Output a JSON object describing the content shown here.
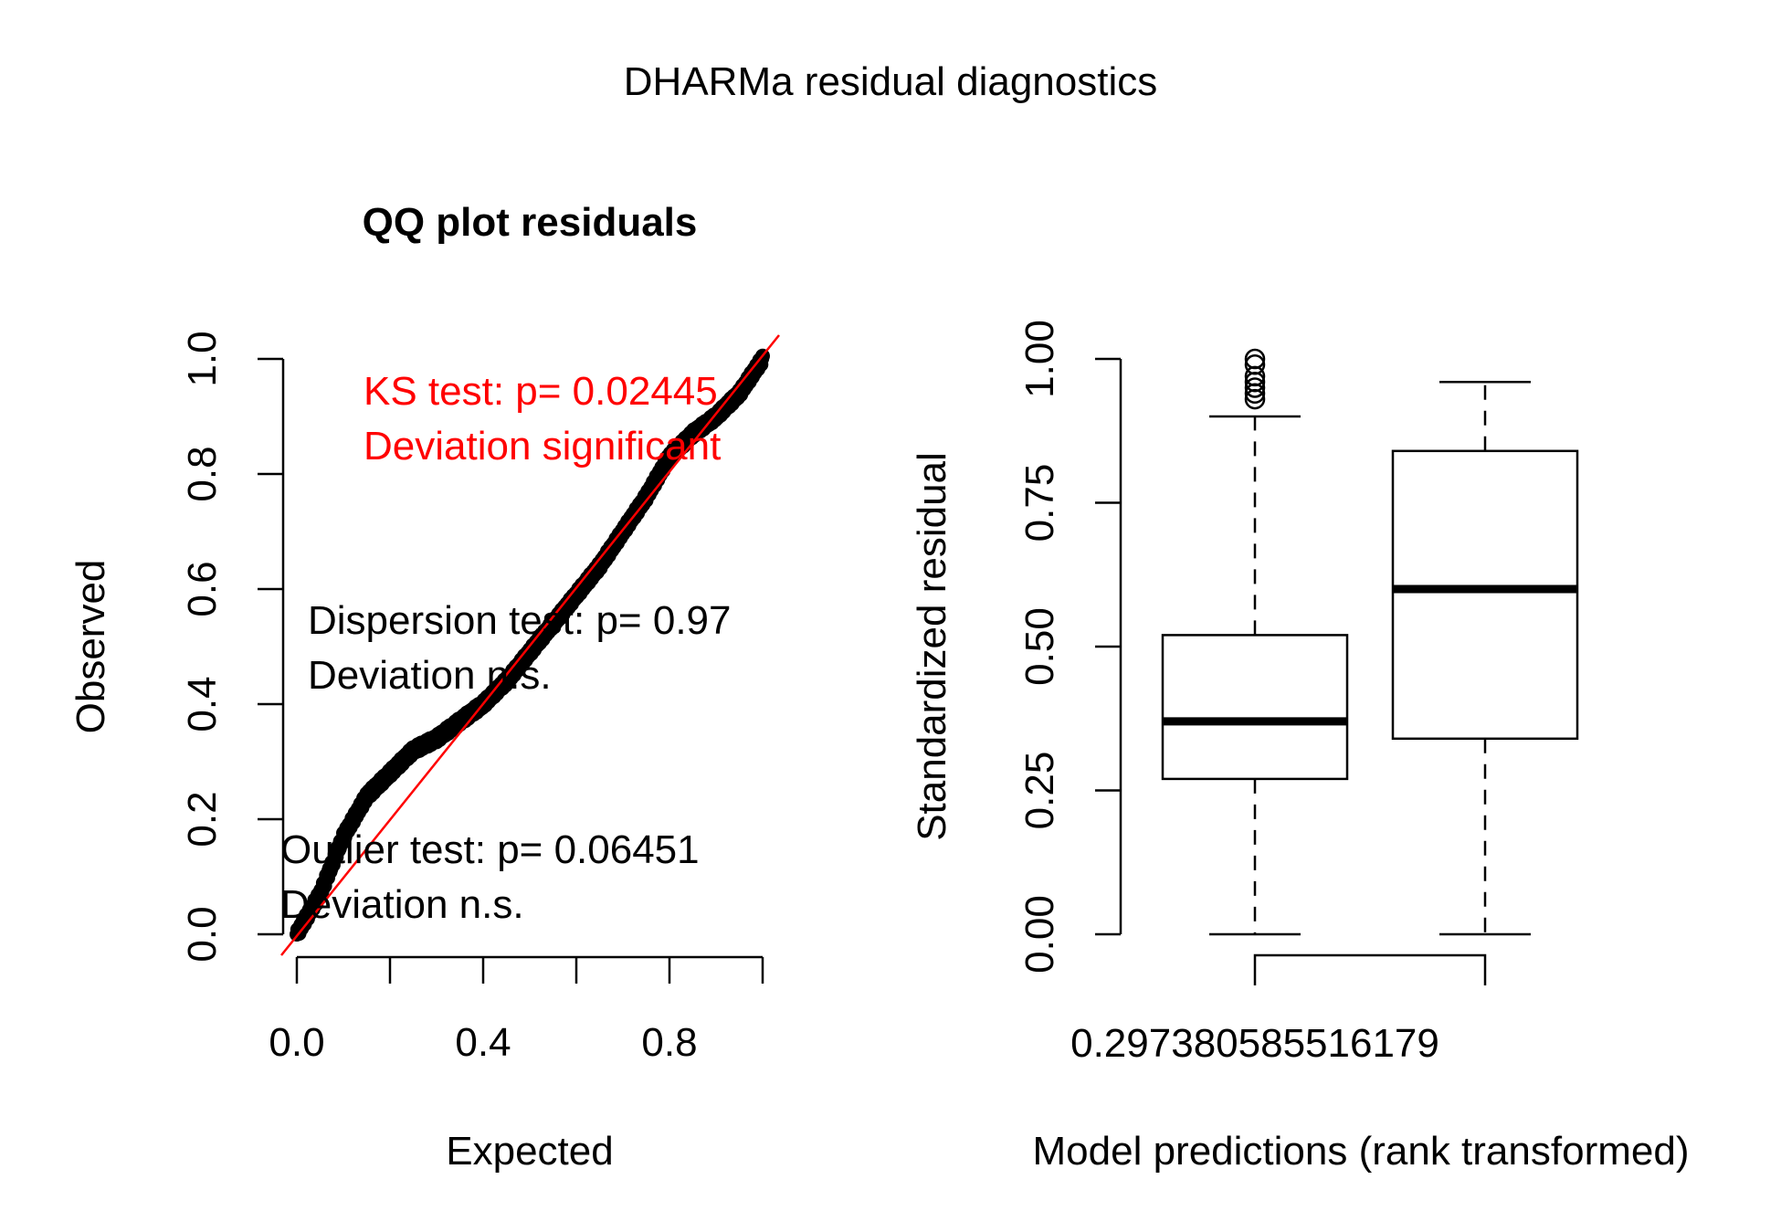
{
  "title": "DHARMa residual diagnostics",
  "chart_data": [
    {
      "type": "scatter",
      "title": "QQ plot residuals",
      "xlabel": "Expected",
      "ylabel": "Observed",
      "xlim": [
        0,
        1
      ],
      "ylim": [
        0,
        1
      ],
      "x_ticks": [
        "0.0",
        "0.4",
        "0.8"
      ],
      "y_ticks": [
        "0.0",
        "0.2",
        "0.4",
        "0.6",
        "0.8",
        "1.0"
      ],
      "reference_line": {
        "slope": 1,
        "intercept": 0,
        "color": "#ff0000"
      },
      "points_approx": [
        [
          0.0,
          0.0
        ],
        [
          0.05,
          0.07
        ],
        [
          0.1,
          0.17
        ],
        [
          0.15,
          0.24
        ],
        [
          0.2,
          0.28
        ],
        [
          0.25,
          0.32
        ],
        [
          0.3,
          0.34
        ],
        [
          0.35,
          0.37
        ],
        [
          0.4,
          0.4
        ],
        [
          0.45,
          0.44
        ],
        [
          0.5,
          0.49
        ],
        [
          0.55,
          0.54
        ],
        [
          0.6,
          0.59
        ],
        [
          0.65,
          0.64
        ],
        [
          0.7,
          0.7
        ],
        [
          0.75,
          0.76
        ],
        [
          0.8,
          0.83
        ],
        [
          0.85,
          0.87
        ],
        [
          0.9,
          0.9
        ],
        [
          0.95,
          0.94
        ],
        [
          1.0,
          1.0
        ]
      ],
      "annotations": [
        {
          "line1": "KS test: p= 0.02445",
          "line2": "Deviation  significant",
          "color": "#ff0000"
        },
        {
          "line1": "Dispersion test: p= 0.97",
          "line2": "Deviation  n.s.",
          "color": "#000000"
        },
        {
          "line1": "Outlier test: p= 0.06451",
          "line2": "Deviation  n.s.",
          "color": "#000000"
        }
      ]
    },
    {
      "type": "box",
      "xlabel": "Model predictions (rank transformed)",
      "ylabel": "Standardized residual",
      "ylim": [
        0,
        1
      ],
      "y_ticks": [
        "0.00",
        "0.25",
        "0.50",
        "0.75",
        "1.00"
      ],
      "x_tick_label": "0.297380585516179",
      "boxes": [
        {
          "whisker_low": 0.0,
          "q1": 0.27,
          "median": 0.37,
          "q3": 0.52,
          "whisker_high": 0.9,
          "outliers": [
            0.93,
            0.94,
            0.95,
            0.96,
            0.97,
            0.99,
            1.0
          ]
        },
        {
          "whisker_low": 0.0,
          "q1": 0.34,
          "median": 0.6,
          "q3": 0.84,
          "whisker_high": 0.96,
          "outliers": []
        }
      ]
    }
  ]
}
